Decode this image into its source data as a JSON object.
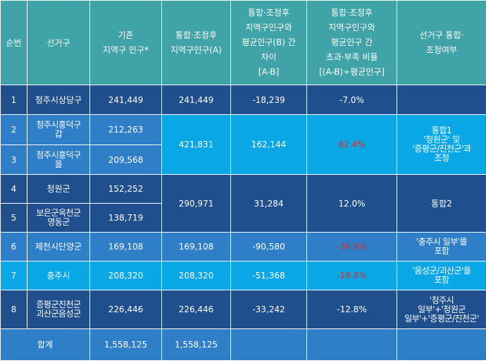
{
  "headers": {
    "no": "순번",
    "district": "선거구",
    "existing_pop": [
      "기존",
      "지역구 인구*"
    ],
    "merged_pop": [
      "통합·조정후",
      "지역구인구(A)"
    ],
    "diff": [
      "통합·조정후",
      "지역구인구와",
      "평균인구(B) 간",
      "차이",
      "[A-B]"
    ],
    "ratio": [
      "통합·조정후",
      "지역구인구와",
      "평균인구 간",
      "초과·부족 비율",
      "[(A-B)÷평균인구]"
    ],
    "status": [
      "선거구 통합·",
      "조정여부"
    ]
  },
  "rows": {
    "r1": {
      "no": "1",
      "district": "청주시상당구",
      "existing": "241,449",
      "merged": "241,449",
      "diff": "-18,239",
      "ratio": "-7.0%",
      "status": ""
    },
    "r2": {
      "no": "2",
      "district": [
        "청주시흥덕구",
        "갑"
      ],
      "existing": "212,263"
    },
    "r3": {
      "no": "3",
      "district": [
        "청주시흥덕구",
        "을"
      ],
      "existing": "209,568"
    },
    "g23": {
      "merged": "421,831",
      "diff": "162,144",
      "ratio": "62.4%",
      "status": [
        "통합1",
        "'청원군' 및",
        "'증평군/진천군'과",
        "조정"
      ]
    },
    "r4": {
      "no": "4",
      "district": "청원군",
      "existing": "152,252"
    },
    "r5": {
      "no": "5",
      "district": [
        "보은군옥천군",
        "영동군"
      ],
      "existing": "138,719"
    },
    "g45": {
      "merged": "290,971",
      "diff": "31,284",
      "ratio": "12.0%",
      "status": "통합2"
    },
    "r6": {
      "no": "6",
      "district": "제천시단양군",
      "existing": "169,108",
      "merged": "169,108",
      "diff": "-90,580",
      "ratio": "-34.9%",
      "status": [
        "'충주시 일부'를",
        "포함"
      ]
    },
    "r7": {
      "no": "7",
      "district": "충주시",
      "existing": "208,320",
      "merged": "208,320",
      "diff": "-51,368",
      "ratio": "-19.8%",
      "status": [
        "'음성군/괴산군'을",
        "포함"
      ]
    },
    "r8": {
      "no": "8",
      "district": [
        "증평군진천군",
        "괴산군음성군"
      ],
      "existing": "226,446",
      "merged": "226,446",
      "diff": "-33,242",
      "ratio": "-12.8%",
      "status": [
        "'청주시",
        "일부'+'청원군",
        "일부'+'증평군/진천군'"
      ]
    },
    "total": {
      "label": "합계",
      "existing": "1,558,125",
      "merged": "1,558,125"
    }
  },
  "colors": {
    "header": "#3fa3a7",
    "col_dark": "#1f4f8c",
    "col_mid": "#2f7ec8",
    "col_light": "#0aa7e6",
    "negative_highlight": "#e02a2a"
  }
}
